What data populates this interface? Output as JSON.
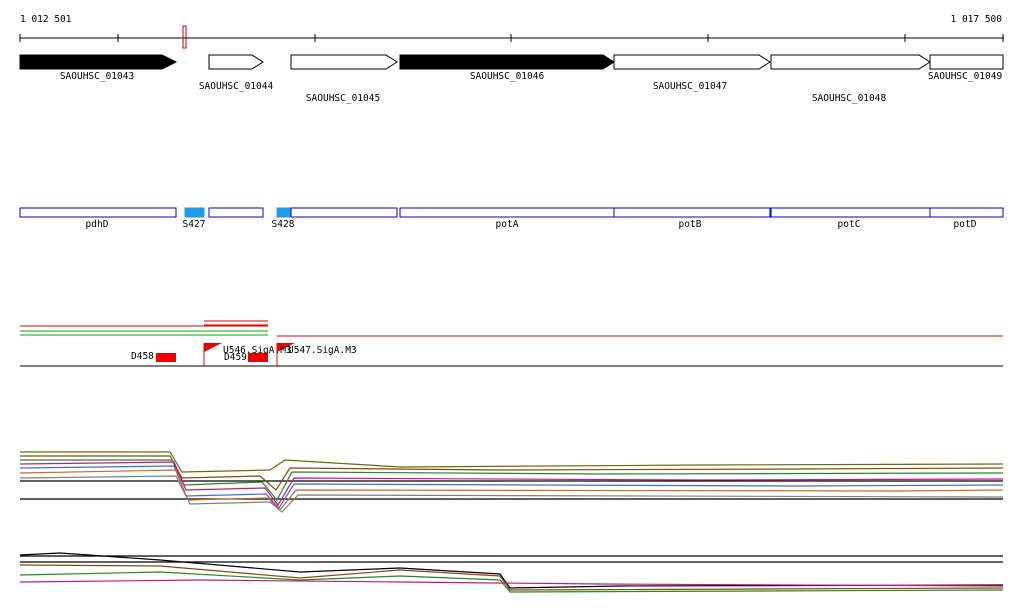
{
  "header": {
    "start": "1 012 501",
    "end": "1 017 500"
  },
  "genes": [
    {
      "label": "SAOUHSC_01043"
    },
    {
      "label": "SAOUHSC_01044"
    },
    {
      "label": "SAOUHSC_01045"
    },
    {
      "label": "SAOUHSC_01046"
    },
    {
      "label": "SAOUHSC_01047"
    },
    {
      "label": "SAOUHSC_01048"
    },
    {
      "label": "SAOUHSC_01049"
    }
  ],
  "features": [
    {
      "label": "pdhD"
    },
    {
      "label": "S427"
    },
    {
      "label": "S428"
    },
    {
      "label": "potA"
    },
    {
      "label": "potB"
    },
    {
      "label": "potC"
    },
    {
      "label": "potD"
    }
  ],
  "annotations": [
    {
      "label": "D458"
    },
    {
      "label": "U546.SigA.M3"
    },
    {
      "label": "U547.SigA.M3"
    },
    {
      "label": "D459"
    }
  ]
}
